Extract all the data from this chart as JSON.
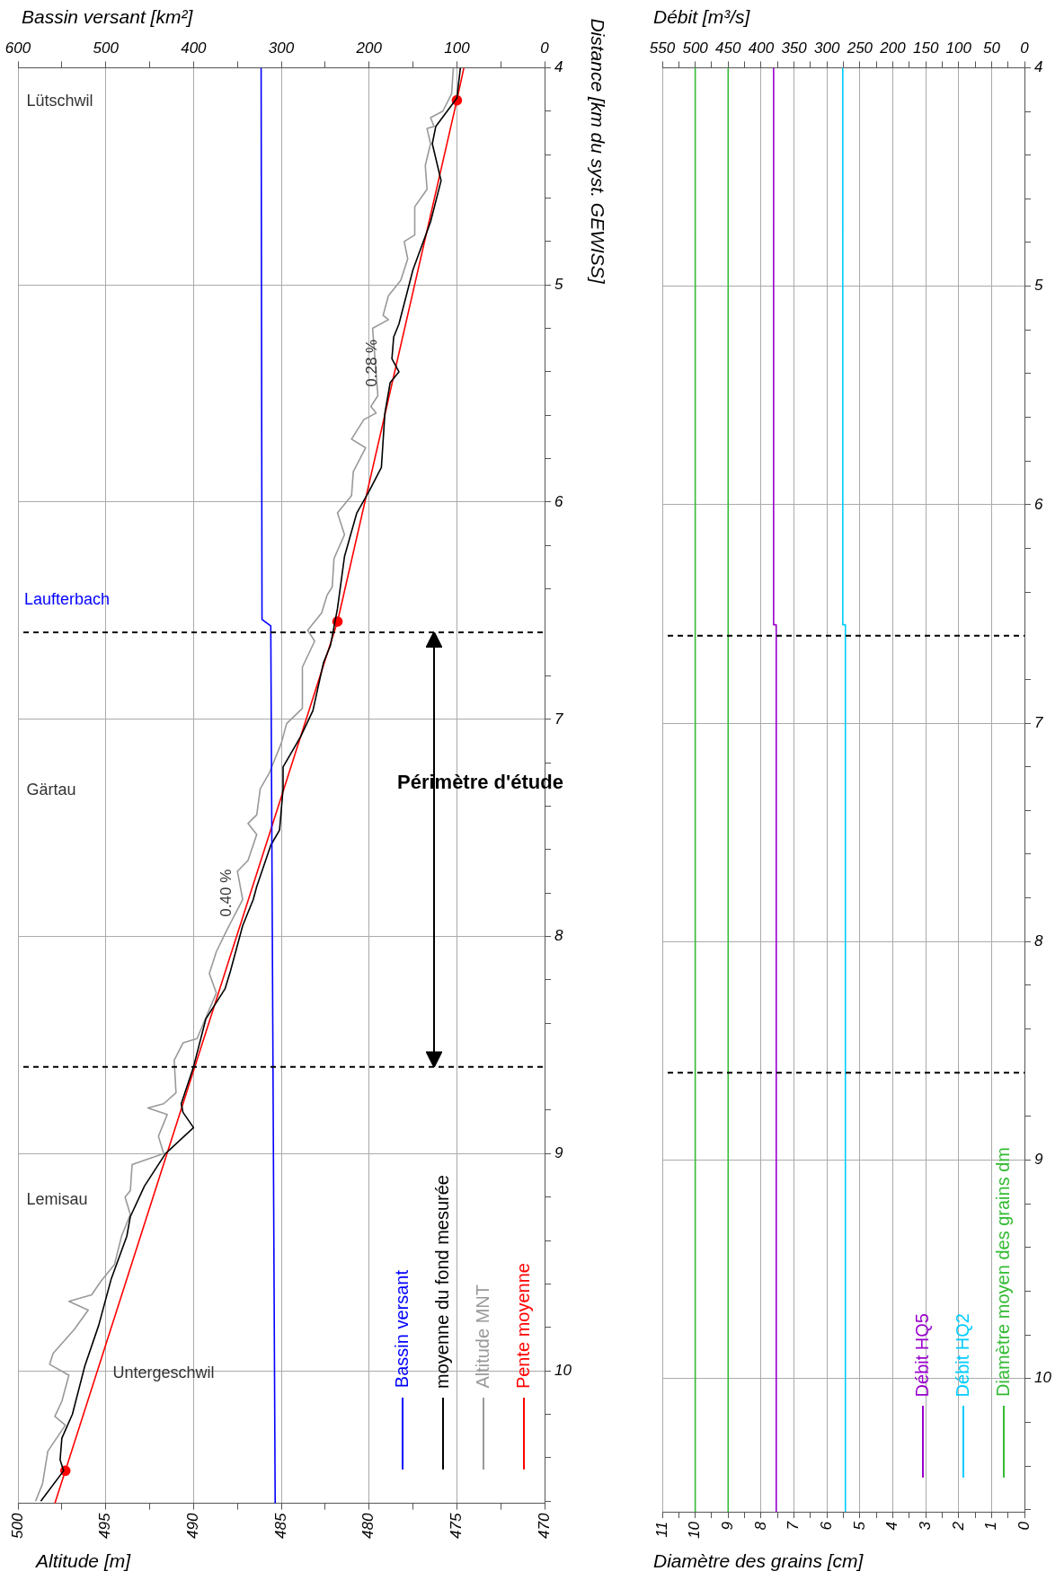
{
  "chart_data": [
    {
      "type": "line",
      "orientation": "horizontal",
      "xlabel": "Altitude [m]",
      "x2label": "Bassin versant [km²]",
      "ylabel": "Distance [km du syst. GEWISS]",
      "ylim": [
        10.61,
        4
      ],
      "yticks": [
        4,
        {
          "value": 4.2,
          "label": null
        },
        {
          "value": 4.4,
          "label": null
        },
        {
          "value": 4.6,
          "label": null
        },
        {
          "value": 4.8,
          "label": null
        },
        5,
        {
          "value": 5.2,
          "label": null
        },
        {
          "value": 5.4,
          "label": null
        },
        {
          "value": 5.6,
          "label": null
        },
        {
          "value": 5.8,
          "label": null
        },
        6,
        {
          "value": 6.2,
          "label": null
        },
        {
          "value": 6.4,
          "label": null
        },
        {
          "value": 6.8,
          "label": null
        },
        7,
        {
          "value": 7.2,
          "label": null
        },
        {
          "value": 7.4,
          "label": null
        },
        {
          "value": 7.6,
          "label": null
        },
        {
          "value": 7.8,
          "label": null
        },
        8,
        {
          "value": 8.2,
          "label": null
        },
        {
          "value": 8.4,
          "label": null
        },
        {
          "value": 8.8,
          "label": null
        },
        9,
        {
          "value": 9.2,
          "label": null
        },
        {
          "value": 9.4,
          "label": null
        },
        {
          "value": 9.6,
          "label": null
        },
        {
          "value": 9.8,
          "label": null
        },
        10,
        {
          "value": 10.2,
          "label": null
        },
        {
          "value": 10.4,
          "label": null
        },
        {
          "value": 10.6,
          "label": null
        }
      ],
      "xlim": [
        500,
        470
      ],
      "xticks": [
        500,
        {
          "value": 497.5,
          "label": null
        },
        495,
        {
          "value": 492.5,
          "label": null
        },
        490,
        {
          "value": 487.5,
          "label": null
        },
        485,
        {
          "value": 482.5,
          "label": null
        },
        480,
        {
          "value": 477.5,
          "label": null
        },
        475,
        {
          "value": 472.5,
          "label": null
        },
        470
      ],
      "x2lim": [
        600,
        0
      ],
      "x2ticks": [
        600,
        {
          "value": 550,
          "label": null
        },
        500,
        {
          "value": 450,
          "label": null
        },
        400,
        {
          "value": 350,
          "label": null
        },
        300,
        {
          "value": 250,
          "label": null
        },
        200,
        {
          "value": 150,
          "label": null
        },
        100,
        {
          "value": 50,
          "label": null
        },
        0
      ],
      "grid": true,
      "legend": "bottom right",
      "series": [
        {
          "name": "Bassin versant",
          "color": "#0000ff",
          "axis": "x2",
          "x": [
            4,
            6.54,
            6.57,
            10.61
          ],
          "values": [
            323,
            322,
            312,
            307
          ]
        },
        {
          "name": "moyenne du fond mesurée",
          "color": "#000000",
          "x": [
            4,
            4.14,
            4.27,
            4.35,
            4.52,
            4.71,
            4.93,
            5.18,
            5.24,
            5.34,
            5.4,
            5.45,
            5.59,
            5.84,
            5.95,
            6.05,
            6.25,
            6.49,
            6.66,
            6.74,
            6.96,
            7.08,
            7.22,
            7.32,
            7.51,
            7.58,
            7.77,
            7.83,
            7.95,
            8.16,
            8.24,
            8.38,
            8.6,
            8.77,
            8.81,
            8.88,
            9.0,
            9.15,
            9.29,
            9.38,
            9.58,
            9.79,
            9.98,
            10.2,
            10.31,
            10.41,
            10.46,
            10.6
          ],
          "values": [
            474.8,
            475.0,
            476.2,
            476.4,
            475.9,
            476.5,
            477.5,
            478.3,
            478.6,
            478.7,
            478.3,
            478.8,
            479.1,
            479.3,
            480.0,
            480.7,
            481.4,
            481.8,
            482.2,
            482.6,
            483.2,
            483.9,
            484.9,
            484.9,
            485.1,
            485.6,
            486.4,
            486.6,
            487.2,
            487.9,
            488.2,
            489.3,
            490.0,
            490.7,
            490.6,
            490.0,
            491.6,
            492.8,
            493.6,
            493.8,
            494.7,
            495.4,
            496.2,
            496.9,
            497.5,
            497.6,
            497.4,
            498.7
          ]
        },
        {
          "name": "Altitude MNT",
          "color": "#999999",
          "x": [
            4,
            4.12,
            4.2,
            4.23,
            4.27,
            4.28,
            4.35,
            4.45,
            4.56,
            4.64,
            4.77,
            4.8,
            4.88,
            4.98,
            5.05,
            5.14,
            5.16,
            5.2,
            5.51,
            5.56,
            5.59,
            5.62,
            5.71,
            5.75,
            5.86,
            5.97,
            6.05,
            6.15,
            6.26,
            6.39,
            6.43,
            6.51,
            6.59,
            6.64,
            6.76,
            6.95,
            7.02,
            7.11,
            7.25,
            7.32,
            7.44,
            7.48,
            7.53,
            7.65,
            7.7,
            7.83,
            7.97,
            8.07,
            8.17,
            8.26,
            8.47,
            8.49,
            8.57,
            8.72,
            8.77,
            8.79,
            8.82,
            8.92,
            9.0,
            9.05,
            9.17,
            9.2,
            9.28,
            9.38,
            9.51,
            9.59,
            9.65,
            9.68,
            9.72,
            9.81,
            9.92,
            9.97,
            10.02,
            10.14,
            10.21,
            10.25,
            10.37,
            10.52,
            10.6
          ],
          "values": [
            475.2,
            475.3,
            475.8,
            476.5,
            476.3,
            476.7,
            476.5,
            476.8,
            476.7,
            477.4,
            477.4,
            478.0,
            477.8,
            478.2,
            478.9,
            479.2,
            478.9,
            479.8,
            479.5,
            479.9,
            479.6,
            480.3,
            481.0,
            480.2,
            480.9,
            481.0,
            481.8,
            481.4,
            482.0,
            482.1,
            482.4,
            482.7,
            483.5,
            483.1,
            483.8,
            483.8,
            484.7,
            485.0,
            485.7,
            486.2,
            486.4,
            486.9,
            486.4,
            486.9,
            487.5,
            487.2,
            488.1,
            488.7,
            489.1,
            488.7,
            489.8,
            490.6,
            491.1,
            491.0,
            491.7,
            492.6,
            491.5,
            492.0,
            491.7,
            493.5,
            493.6,
            493.9,
            493.6,
            494.1,
            494.5,
            495.3,
            495.8,
            497.1,
            496.0,
            496.8,
            498.0,
            498.2,
            497.1,
            497.5,
            497.9,
            497.3,
            498.3,
            498.6,
            499.0
          ]
        },
        {
          "name": "Pente moyenne",
          "color": "#ff0000",
          "marker": "circle",
          "x": [
            4.15,
            6.55,
            10.46
          ],
          "values": [
            475.0,
            481.8,
            497.3
          ]
        },
        {
          "color": "#ff0000",
          "x": [
            4,
            4.15,
            6.55,
            10.46,
            10.61
          ],
          "values": [
            474.6,
            475.0,
            null,
            497.3,
            497.9
          ]
        }
      ],
      "ref_lines": [
        {
          "axis": "y",
          "value": 6.6,
          "line_style": "dashed"
        },
        {
          "axis": "y",
          "value": 8.6,
          "line_style": "dashed"
        }
      ],
      "annotations": [
        "Laufterbach",
        "Lütschwil",
        "Gärtau",
        "Lemisau",
        "Untergeschwil",
        "Périmètre d'étude",
        {
          "text": "0.28 %",
          "x": 478.4,
          "y": 5.36
        },
        {
          "text": "0.40 %",
          "x": 486.7,
          "y": 7.8
        }
      ]
    },
    {
      "type": "line",
      "orientation": "horizontal",
      "xlabel": "Diamètre des grains [cm]",
      "x2label": "Débit [m³/s]",
      "ylim": [
        10.61,
        4
      ],
      "yticks": [
        4,
        {
          "value": 4.2,
          "label": null
        },
        {
          "value": 4.4,
          "label": null
        },
        {
          "value": 4.6,
          "label": null
        },
        {
          "value": 4.8,
          "label": null
        },
        5,
        {
          "value": 5.2,
          "label": null
        },
        {
          "value": 5.4,
          "label": null
        },
        {
          "value": 5.6,
          "label": null
        },
        {
          "value": 5.8,
          "label": null
        },
        6,
        {
          "value": 6.2,
          "label": null
        },
        {
          "value": 6.4,
          "label": null
        },
        {
          "value": 6.8,
          "label": null
        },
        7,
        {
          "value": 7.2,
          "label": null
        },
        {
          "value": 7.4,
          "label": null
        },
        {
          "value": 7.6,
          "label": null
        },
        {
          "value": 7.8,
          "label": null
        },
        8,
        {
          "value": 8.2,
          "label": null
        },
        {
          "value": 8.4,
          "label": null
        },
        {
          "value": 8.8,
          "label": null
        },
        9,
        {
          "value": 9.2,
          "label": null
        },
        {
          "value": 9.4,
          "label": null
        },
        {
          "value": 9.6,
          "label": null
        },
        {
          "value": 9.8,
          "label": null
        },
        10,
        {
          "value": 10.2,
          "label": null
        },
        {
          "value": 10.4,
          "label": null
        },
        {
          "value": 10.6,
          "label": null
        }
      ],
      "xlim": [
        11,
        0
      ],
      "xticks": [
        11,
        {
          "value": 10.5,
          "label": null
        },
        10,
        {
          "value": 9.5,
          "label": null
        },
        9,
        {
          "value": 8.5,
          "label": null
        },
        8,
        {
          "value": 7.5,
          "label": null
        },
        7,
        {
          "value": 6.5,
          "label": null
        },
        6,
        {
          "value": 5.5,
          "label": null
        },
        5,
        {
          "value": 4.5,
          "label": null
        },
        4,
        {
          "value": 3.5,
          "label": null
        },
        3,
        {
          "value": 2.5,
          "label": null
        },
        2,
        {
          "value": 1.5,
          "label": null
        },
        1,
        {
          "value": 0.5,
          "label": null
        },
        0
      ],
      "x2lim": [
        550,
        0
      ],
      "x2ticks": [
        550,
        {
          "value": 525,
          "label": null
        },
        500,
        {
          "value": 475,
          "label": null
        },
        450,
        {
          "value": 425,
          "label": null
        },
        400,
        {
          "value": 375,
          "label": null
        },
        350,
        {
          "value": 325,
          "label": null
        },
        300,
        {
          "value": 275,
          "label": null
        },
        250,
        {
          "value": 225,
          "label": null
        },
        200,
        {
          "value": 175,
          "label": null
        },
        150,
        {
          "value": 125,
          "label": null
        },
        100,
        {
          "value": 75,
          "label": null
        },
        50,
        {
          "value": 25,
          "label": null
        },
        0
      ],
      "grid": true,
      "legend": "bottom right",
      "series": [
        {
          "name": "Débit HQ5",
          "color": "#9900cc",
          "axis": "x2",
          "x": [
            4,
            6.55,
            6.55,
            10.61
          ],
          "values": [
            381,
            381,
            377,
            377
          ]
        },
        {
          "name": "Débit HQ2",
          "color": "#00ccff",
          "axis": "x2",
          "x": [
            4,
            6.55,
            6.55,
            10.61
          ],
          "values": [
            276,
            276,
            272,
            272
          ]
        },
        {
          "name": "Diamètre moyen des grains dm",
          "color": "#33bb33",
          "x": [
            4,
            10.61
          ],
          "values": [
            10,
            10
          ]
        },
        {
          "color": "#33bb33",
          "x": [
            4,
            10.61
          ],
          "values": [
            9,
            9
          ]
        }
      ],
      "ref_lines": [
        {
          "axis": "y",
          "value": 6.6,
          "line_style": "dashed"
        },
        {
          "axis": "y",
          "value": 8.6,
          "line_style": "dashed"
        }
      ]
    }
  ]
}
